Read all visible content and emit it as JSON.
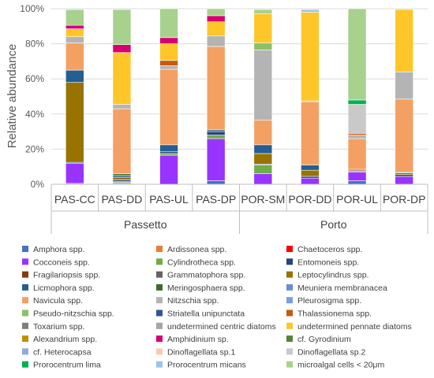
{
  "chart_data": {
    "type": "bar",
    "stacked": true,
    "ylabel": "Relative abundance",
    "ylim": [
      0,
      100
    ],
    "yticks": [
      "0%",
      "20%",
      "40%",
      "60%",
      "80%",
      "100%"
    ],
    "grid": "horizontal",
    "legend_position": "bottom",
    "categories": [
      "PAS-CC",
      "PAS-DD",
      "PAS-UL",
      "PAS-DP",
      "POR-SM",
      "POR-DD",
      "POR-UL",
      "POR-DP"
    ],
    "groups": [
      {
        "label": "Passetto",
        "categories": [
          "PAS-CC",
          "PAS-DD",
          "PAS-UL",
          "PAS-DP"
        ]
      },
      {
        "label": "Porto",
        "categories": [
          "POR-SM",
          "POR-DD",
          "POR-UL",
          "POR-DP"
        ]
      }
    ],
    "series": [
      {
        "name": "Amphora spp.",
        "color": "#4472C4",
        "values": [
          0.5,
          0.5,
          0,
          2,
          0,
          0,
          2,
          0
        ]
      },
      {
        "name": "Ardissonea spp.",
        "color": "#ED7D31",
        "values": [
          0,
          0,
          0,
          0,
          0,
          0,
          0,
          0
        ]
      },
      {
        "name": "Chaetoceros spp.",
        "color": "#FF0000",
        "values": [
          0,
          0,
          0,
          0,
          0,
          0,
          0,
          0
        ]
      },
      {
        "name": "Cocconeis spp.",
        "color": "#9933FF",
        "values": [
          11.5,
          0.5,
          16.5,
          24,
          6,
          3.5,
          5,
          4.5
        ]
      },
      {
        "name": "Cylindrotheca spp.",
        "color": "#70AD47",
        "values": [
          0,
          0.5,
          1,
          2,
          5,
          0,
          0,
          0
        ]
      },
      {
        "name": "Entomoneis spp.",
        "color": "#264478",
        "values": [
          0.5,
          1,
          1,
          2,
          0.5,
          1,
          0.5,
          1
        ]
      },
      {
        "name": "Fragilariopsis spp.",
        "color": "#843C0C",
        "values": [
          0,
          0,
          0,
          0,
          0,
          0,
          0.5,
          0
        ]
      },
      {
        "name": "Grammatophora spp.",
        "color": "#636363",
        "values": [
          0,
          0,
          0,
          0,
          0,
          0,
          0,
          0
        ]
      },
      {
        "name": "Leptocylindrus spp.",
        "color": "#997300",
        "values": [
          45.5,
          1.5,
          0,
          0,
          6,
          3.5,
          0,
          1
        ]
      },
      {
        "name": "Licmophora spp.",
        "color": "#255E91",
        "values": [
          7,
          1,
          4,
          1,
          5,
          3,
          0.5,
          0
        ]
      },
      {
        "name": "Meringosphaera spp.",
        "color": "#43682B",
        "values": [
          0,
          1,
          0,
          0,
          0,
          0,
          0,
          0.5
        ]
      },
      {
        "name": "Meuniera membranacea",
        "color": "#698ED0",
        "values": [
          0,
          0,
          0,
          0,
          0,
          0,
          0,
          0
        ]
      },
      {
        "name": "Navicula spp.",
        "color": "#F4A062",
        "values": [
          15.5,
          37,
          43,
          47.5,
          14,
          36,
          17.5,
          41.5
        ]
      },
      {
        "name": "Nitzschia spp.",
        "color": "#B4B4B4",
        "values": [
          3.5,
          2.5,
          2,
          6,
          40,
          0.5,
          2,
          15.5
        ]
      },
      {
        "name": "Pleurosigma spp.",
        "color": "#7C9FDB",
        "values": [
          0,
          0,
          0,
          0,
          0,
          0,
          0,
          0
        ]
      },
      {
        "name": "Pseudo-nitzschia spp.",
        "color": "#8CC168",
        "values": [
          0,
          0,
          0,
          0,
          4,
          0,
          0,
          0
        ]
      },
      {
        "name": "Striatella unipunctata",
        "color": "#2F5597",
        "values": [
          0,
          0,
          0,
          0,
          0,
          0,
          0,
          0
        ]
      },
      {
        "name": "Thalassionema spp.",
        "color": "#C55A11",
        "values": [
          0,
          0,
          3,
          0,
          0,
          0,
          1,
          0
        ]
      },
      {
        "name": "Toxarium spp.",
        "color": "#7F7F7F",
        "values": [
          0,
          0,
          0,
          0,
          0,
          0,
          0,
          0
        ]
      },
      {
        "name": "undetermined centric diatoms",
        "color": "#A5A5A5",
        "values": [
          0,
          0,
          0,
          0,
          0,
          0,
          0,
          0
        ]
      },
      {
        "name": "undetermined pennate diatoms",
        "color": "#FFC629",
        "values": [
          4.5,
          29.5,
          9.5,
          8,
          16.5,
          50.5,
          0,
          35.5
        ]
      },
      {
        "name": "Alexandrium spp.",
        "color": "#BF9000",
        "values": [
          0,
          0,
          0,
          0,
          0,
          0,
          0,
          0
        ]
      },
      {
        "name": "Amphidinium sp.",
        "color": "#D6006F",
        "values": [
          2,
          4.5,
          3.5,
          3.5,
          0,
          0,
          0,
          0
        ]
      },
      {
        "name": "cf. Gyrodinium",
        "color": "#548235",
        "values": [
          0,
          0,
          0,
          0,
          0,
          0,
          0,
          0
        ]
      },
      {
        "name": "cf. Heterocapsa",
        "color": "#8FAADC",
        "values": [
          0,
          0,
          0,
          0,
          0,
          0,
          0,
          0
        ]
      },
      {
        "name": "Dinoflagellata sp.1",
        "color": "#F8CBAD",
        "values": [
          0,
          0,
          0,
          0,
          0,
          0,
          0,
          0
        ]
      },
      {
        "name": "Dinoflagellata sp.2",
        "color": "#C9C9C9",
        "values": [
          0,
          0,
          0,
          0,
          0,
          0,
          16.5,
          0
        ]
      },
      {
        "name": "Prorocentrum lima",
        "color": "#00B050",
        "values": [
          0,
          0,
          0,
          0,
          0,
          0,
          2.5,
          0
        ]
      },
      {
        "name": "Prorocentrum micans",
        "color": "#9DC3E6",
        "values": [
          0,
          0,
          0,
          0,
          0,
          1.5,
          0,
          0
        ]
      },
      {
        "name": "microalgal cells < 20μm",
        "color": "#A9D18E",
        "values": [
          9,
          20,
          16.5,
          4,
          2.5,
          0,
          52,
          0.5
        ]
      }
    ]
  }
}
